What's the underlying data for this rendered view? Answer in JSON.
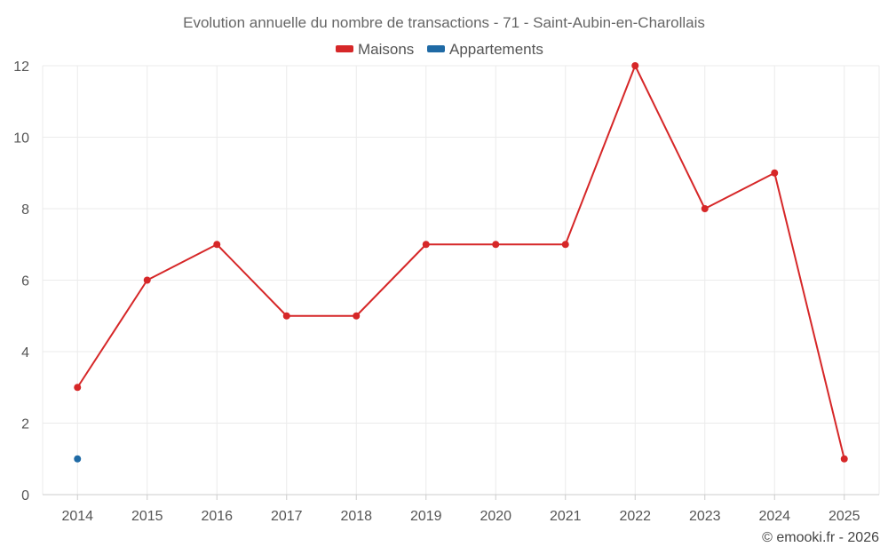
{
  "chart_data": {
    "type": "line",
    "title": "Evolution annuelle du nombre de transactions - 71 - Saint-Aubin-en-Charollais",
    "categories": [
      "2014",
      "2015",
      "2016",
      "2017",
      "2018",
      "2019",
      "2020",
      "2021",
      "2022",
      "2023",
      "2024",
      "2025"
    ],
    "series": [
      {
        "name": "Maisons",
        "color": "#d62728",
        "values": [
          3,
          6,
          7,
          5,
          5,
          7,
          7,
          7,
          12,
          8,
          9,
          1
        ]
      },
      {
        "name": "Appartements",
        "color": "#1f6aa5",
        "values": [
          1,
          null,
          null,
          null,
          null,
          null,
          null,
          null,
          null,
          null,
          null,
          null
        ]
      }
    ],
    "ylim": [
      0,
      12
    ],
    "yticks": [
      0,
      2,
      4,
      6,
      8,
      10,
      12
    ],
    "xlabel": "",
    "ylabel": "",
    "grid": true,
    "legend_position": "top-center"
  },
  "credit": "© emooki.fr - 2026"
}
